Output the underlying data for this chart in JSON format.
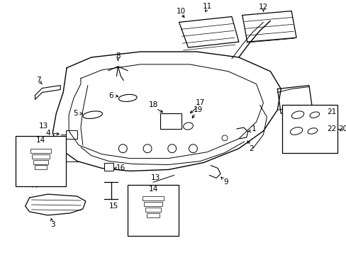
{
  "bg_color": "#ffffff",
  "line_color": "#000000",
  "figsize": [
    4.89,
    3.6
  ],
  "dpi": 100,
  "font_size": 7.5
}
